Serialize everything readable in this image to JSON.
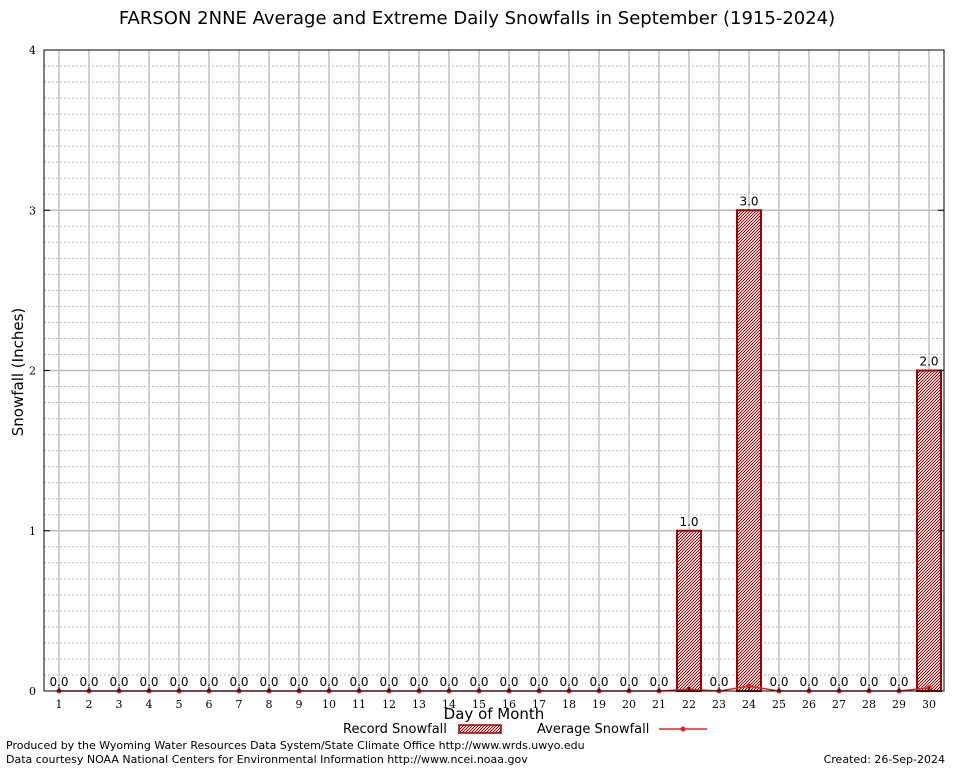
{
  "chart_data": {
    "type": "bar",
    "title": "FARSON 2NNE Average and Extreme Daily Snowfalls in September (1915-2024)",
    "xlabel": "Day of Month",
    "ylabel": "Snowfall (Inches)",
    "ylim": [
      0,
      4
    ],
    "yticks": [
      "0",
      "1",
      "2",
      "3",
      "4"
    ],
    "categories": [
      "1",
      "2",
      "3",
      "4",
      "5",
      "6",
      "7",
      "8",
      "9",
      "10",
      "11",
      "12",
      "13",
      "14",
      "15",
      "16",
      "17",
      "18",
      "19",
      "20",
      "21",
      "22",
      "23",
      "24",
      "25",
      "26",
      "27",
      "28",
      "29",
      "30"
    ],
    "grid": true,
    "legend_position": "bottom",
    "series": [
      {
        "name": "Record Snowfall",
        "kind": "bar",
        "color": "#a00000",
        "values": [
          0.0,
          0.0,
          0.0,
          0.0,
          0.0,
          0.0,
          0.0,
          0.0,
          0.0,
          0.0,
          0.0,
          0.0,
          0.0,
          0.0,
          0.0,
          0.0,
          0.0,
          0.0,
          0.0,
          0.0,
          0.0,
          1.0,
          0.0,
          3.0,
          0.0,
          0.0,
          0.0,
          0.0,
          0.0,
          2.0
        ],
        "labels": [
          "0.0",
          "0.0",
          "0.0",
          "0.0",
          "0.0",
          "0.0",
          "0.0",
          "0.0",
          "0.0",
          "0.0",
          "0.0",
          "0.0",
          "0.0",
          "0.0",
          "0.0",
          "0.0",
          "0.0",
          "0.0",
          "0.0",
          "0.0",
          "0.0",
          "1.0",
          "0.0",
          "3.0",
          "0.0",
          "0.0",
          "0.0",
          "0.0",
          "0.0",
          "2.0"
        ]
      },
      {
        "name": "Average Snowfall",
        "kind": "line",
        "color": "#e8202a",
        "values": [
          0,
          0,
          0,
          0,
          0,
          0,
          0,
          0,
          0,
          0,
          0,
          0,
          0,
          0,
          0,
          0,
          0,
          0,
          0,
          0,
          0,
          0.01,
          0,
          0.03,
          0,
          0,
          0,
          0,
          0,
          0.02
        ]
      }
    ]
  },
  "footer": {
    "produced": "Produced by the Wyoming Water Resources Data System/State Climate Office http://www.wrds.uwyo.edu",
    "courtesy": "Data courtesy NOAA National Centers for Environmental Information http://www.ncei.noaa.gov",
    "created": "Created: 26-Sep-2024"
  }
}
